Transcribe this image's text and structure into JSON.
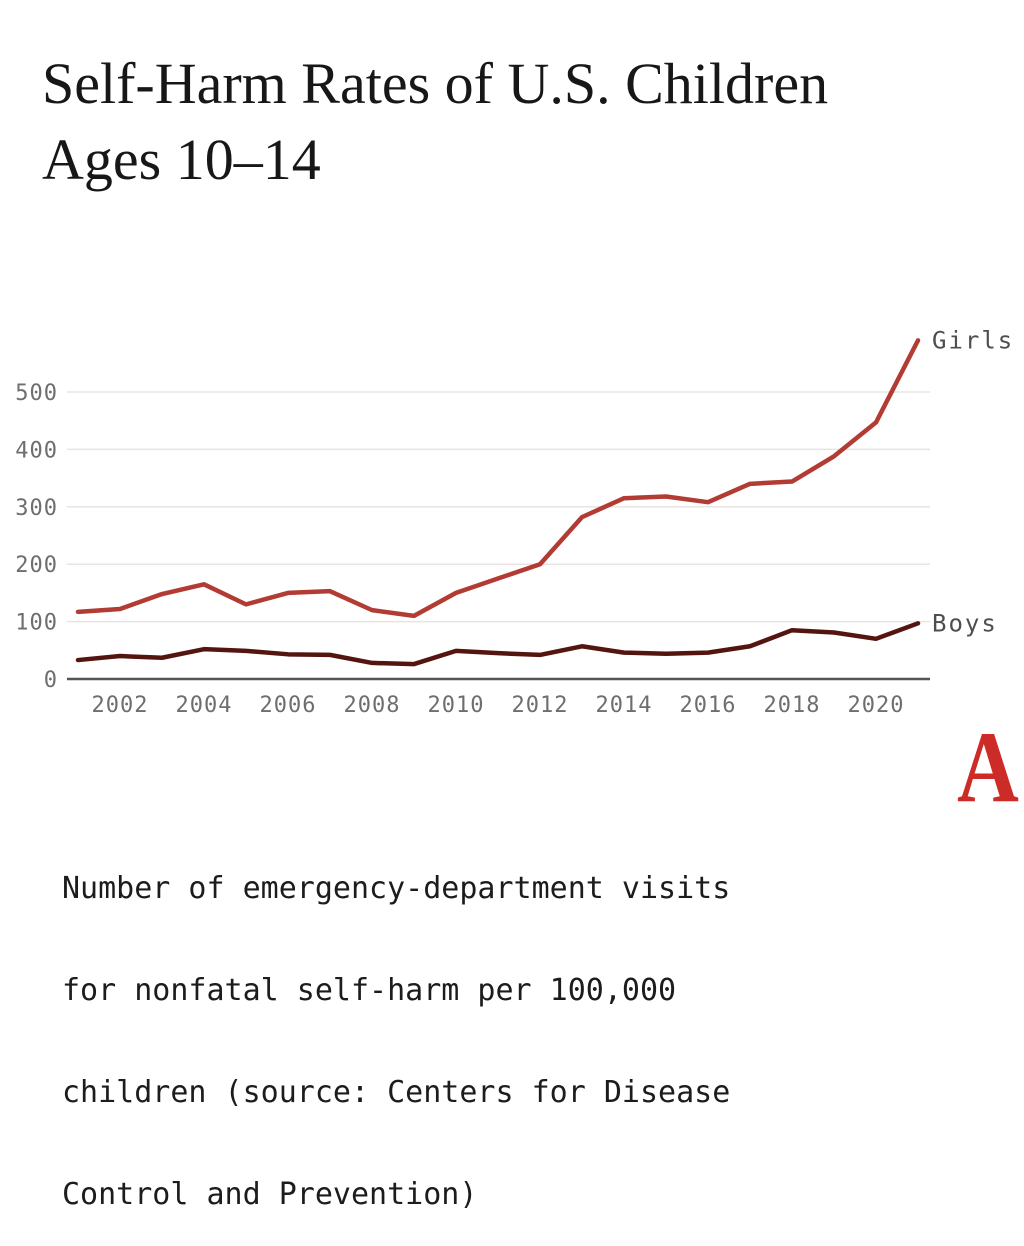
{
  "header": {
    "title_lines": [
      "Self-Harm Rates of U.S. Children",
      "Ages 10–14"
    ]
  },
  "footer": {
    "caption_lines": [
      "Number of emergency-department visits",
      "for nonfatal self-harm per 100,000",
      "children (source: Centers for Disease",
      "Control and Prevention)"
    ],
    "logo_letter": "A"
  },
  "colors": {
    "girls_line": "#b23b33",
    "boys_line": "#541511",
    "grid": "#e7e5e3",
    "axis_baseline": "#555555",
    "tick_text": "#6e6e6e",
    "series_label_text": "#4e4e4e",
    "logo_red": "#cd2b27",
    "title_text": "#171717",
    "caption_text": "#1c1c1c"
  },
  "chart_data": {
    "type": "line",
    "title": "Self-Harm Rates of U.S. Children Ages 10–14",
    "xlabel": "",
    "ylabel": "Number of emergency-department visits for nonfatal self-harm per 100,000 children",
    "x": [
      2001,
      2002,
      2003,
      2004,
      2005,
      2006,
      2007,
      2008,
      2009,
      2010,
      2011,
      2012,
      2013,
      2014,
      2015,
      2016,
      2017,
      2018,
      2019,
      2020,
      2021
    ],
    "series": [
      {
        "name": "Girls",
        "color": "#b23b33",
        "values": [
          117,
          122,
          148,
          165,
          130,
          150,
          153,
          120,
          110,
          150,
          175,
          200,
          282,
          315,
          318,
          308,
          340,
          344,
          388,
          447,
          590
        ]
      },
      {
        "name": "Boys",
        "color": "#541511",
        "values": [
          33,
          40,
          37,
          52,
          49,
          43,
          42,
          28,
          26,
          49,
          45,
          42,
          57,
          46,
          44,
          46,
          57,
          85,
          81,
          70,
          97
        ]
      }
    ],
    "xticks": [
      2002,
      2004,
      2006,
      2008,
      2010,
      2012,
      2014,
      2016,
      2018,
      2020
    ],
    "yticks": [
      0,
      100,
      200,
      300,
      400,
      500
    ],
    "xlim": [
      2001,
      2021
    ],
    "ylim": [
      0,
      620
    ],
    "grid": "horizontal-only",
    "legend_position": "labels-at-line-ends-right"
  }
}
